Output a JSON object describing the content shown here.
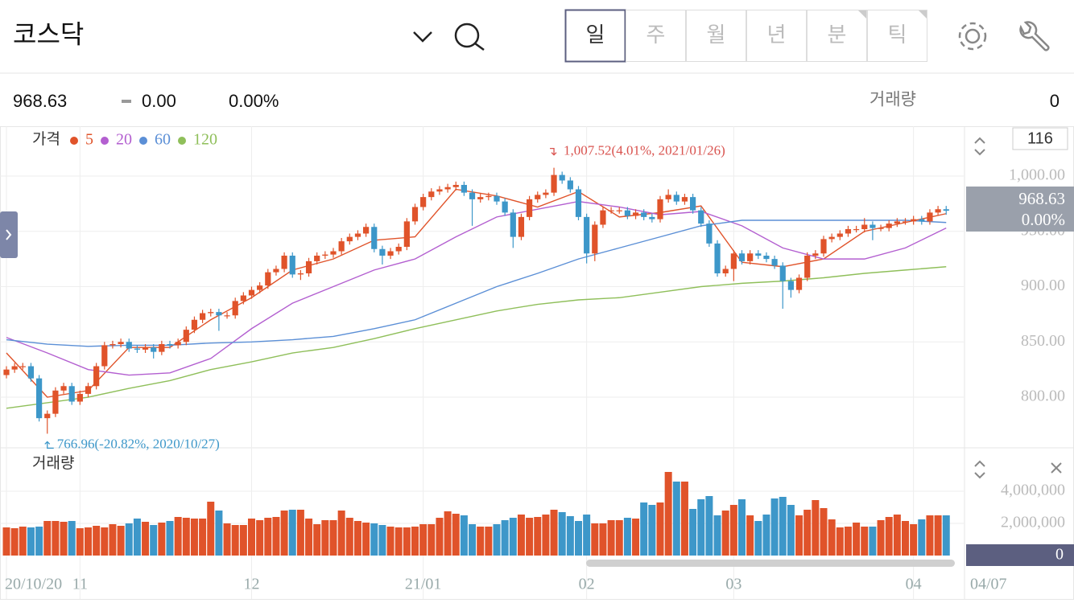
{
  "header": {
    "title": "코스닥",
    "tabs": [
      "일",
      "주",
      "월",
      "년",
      "분",
      "틱"
    ]
  },
  "quote": {
    "price": "968.63",
    "change": "0.00",
    "change_pct": "0.00%",
    "volume_label": "거래량",
    "volume": "0"
  },
  "chart_data": [
    {
      "type": "candlestick",
      "legend_title": "가격",
      "visible_count": 116,
      "up_color": "#e0532a",
      "down_color": "#3d97c9",
      "ylim": [
        754.2,
        1042.9
      ],
      "yticks": [
        {
          "value": 800,
          "label": "800.00"
        },
        {
          "value": 850,
          "label": "850.00"
        },
        {
          "value": 900,
          "label": "900.00"
        },
        {
          "value": 950,
          "label": "950.00"
        },
        {
          "value": 1000,
          "label": "1,000.00"
        }
      ],
      "grid": true,
      "annotations": [
        {
          "text": "1,007.52(4.01%, 2021/01/26)",
          "color": "#d9534f",
          "at": 67,
          "value": 1007.52
        },
        {
          "text": "766.96(-20.82%, 2020/10/27)",
          "color": "#3d97c9",
          "at": 5,
          "value": 766.96
        }
      ],
      "open": [
        820,
        825,
        828,
        828,
        817,
        781,
        785,
        806,
        810,
        796,
        803,
        810,
        828,
        847,
        848,
        850,
        844,
        843,
        845,
        841,
        848,
        847,
        850,
        861,
        870,
        876,
        877,
        874,
        874,
        887,
        892,
        897,
        901,
        913,
        916,
        928,
        911,
        912,
        923,
        928,
        929,
        932,
        941,
        945,
        948,
        954,
        934,
        928,
        932,
        936,
        959,
        972,
        981,
        986,
        988,
        990,
        992,
        985,
        979,
        981,
        982,
        977,
        967,
        945,
        963,
        979,
        983,
        985,
        1001,
        996,
        988,
        963,
        930,
        956,
        969,
        969,
        969,
        964,
        967,
        963,
        961,
        979,
        983,
        977,
        981,
        969,
        957,
        939,
        912,
        916,
        930,
        923,
        930,
        928,
        925,
        919,
        905,
        897,
        908,
        928,
        930,
        943,
        945,
        948,
        952,
        952,
        956,
        953,
        953,
        957,
        959,
        959,
        961,
        959,
        967,
        970
      ],
      "high": [
        828,
        831,
        831,
        831,
        820,
        788,
        809,
        813,
        813,
        806,
        813,
        831,
        850,
        851,
        853,
        853,
        847,
        848,
        848,
        851,
        851,
        853,
        864,
        873,
        879,
        880,
        880,
        877,
        890,
        895,
        900,
        904,
        916,
        919,
        931,
        931,
        915,
        926,
        931,
        932,
        935,
        944,
        948,
        951,
        957,
        957,
        937,
        935,
        939,
        962,
        975,
        984,
        989,
        991,
        993,
        995,
        995,
        988,
        984,
        985,
        985,
        980,
        970,
        966,
        982,
        986,
        988,
        1007.52,
        1004,
        999,
        991,
        966,
        959,
        972,
        972,
        972,
        972,
        970,
        970,
        966,
        982,
        988,
        986,
        984,
        984,
        972,
        960,
        942,
        919,
        933,
        933,
        933,
        933,
        931,
        928,
        922,
        908,
        911,
        931,
        933,
        946,
        948,
        951,
        955,
        955,
        962,
        959,
        956,
        960,
        962,
        962,
        964,
        964,
        970,
        973,
        973
      ],
      "low": [
        817,
        822,
        825,
        814,
        778,
        766.96,
        782,
        803,
        793,
        793,
        800,
        807,
        825,
        844,
        845,
        841,
        840,
        840,
        835,
        838,
        844,
        844,
        847,
        858,
        867,
        873,
        860,
        871,
        871,
        884,
        889,
        894,
        898,
        910,
        913,
        908,
        906,
        909,
        920,
        925,
        926,
        929,
        938,
        942,
        945,
        931,
        920,
        925,
        929,
        933,
        956,
        969,
        978,
        983,
        985,
        987,
        982,
        955,
        976,
        978,
        974,
        964,
        935,
        942,
        960,
        976,
        980,
        982,
        993,
        985,
        960,
        921,
        923,
        953,
        966,
        966,
        961,
        961,
        960,
        958,
        958,
        976,
        974,
        974,
        966,
        954,
        936,
        909,
        909,
        905,
        920,
        920,
        925,
        922,
        916,
        880,
        890,
        894,
        905,
        925,
        927,
        940,
        942,
        945,
        949,
        949,
        942,
        950,
        950,
        954,
        956,
        956,
        956,
        956,
        964,
        965
      ],
      "close": [
        825,
        828,
        828,
        817,
        781,
        785,
        806,
        810,
        796,
        803,
        810,
        828,
        847,
        848,
        850,
        844,
        843,
        845,
        841,
        848,
        847,
        850,
        861,
        870,
        876,
        877,
        874,
        874,
        887,
        892,
        897,
        901,
        913,
        916,
        928,
        911,
        912,
        923,
        928,
        929,
        932,
        941,
        945,
        948,
        954,
        934,
        928,
        932,
        936,
        959,
        972,
        981,
        986,
        988,
        990,
        992,
        985,
        979,
        981,
        982,
        977,
        967,
        945,
        963,
        979,
        983,
        985,
        1001,
        996,
        988,
        963,
        930,
        956,
        969,
        969,
        969,
        964,
        967,
        963,
        961,
        979,
        983,
        977,
        981,
        969,
        957,
        939,
        912,
        916,
        930,
        923,
        930,
        928,
        925,
        919,
        905,
        897,
        908,
        928,
        930,
        943,
        945,
        948,
        952,
        952,
        956,
        953,
        953,
        957,
        959,
        959,
        961,
        959,
        967,
        970,
        968.63
      ],
      "series": [
        {
          "name": "5",
          "color": "#e0532a",
          "x": [
            0,
            5,
            10,
            15,
            20,
            25,
            30,
            35,
            40,
            45,
            50,
            55,
            60,
            65,
            70,
            75,
            80,
            85,
            90,
            95,
            100,
            105,
            110,
            115
          ],
          "values": [
            840,
            800,
            806,
            845,
            845,
            870,
            890,
            915,
            925,
            942,
            945,
            988,
            982,
            972,
            986,
            963,
            967,
            973,
            922,
            918,
            925,
            950,
            958,
            966
          ]
        },
        {
          "name": "20",
          "color": "#b35fd0",
          "x": [
            0,
            5,
            10,
            15,
            20,
            25,
            30,
            35,
            40,
            45,
            50,
            55,
            60,
            65,
            70,
            75,
            80,
            85,
            90,
            95,
            100,
            105,
            110,
            115
          ],
          "values": [
            854,
            840,
            825,
            820,
            822,
            835,
            862,
            885,
            900,
            915,
            925,
            945,
            963,
            970,
            977,
            972,
            965,
            968,
            955,
            935,
            925,
            925,
            935,
            953
          ]
        },
        {
          "name": "60",
          "color": "#5b8fd6",
          "x": [
            0,
            5,
            10,
            15,
            20,
            25,
            30,
            35,
            40,
            45,
            50,
            55,
            60,
            65,
            70,
            75,
            80,
            85,
            90,
            95,
            100,
            105,
            110,
            115
          ],
          "values": [
            852,
            848,
            846,
            847,
            847,
            849,
            850,
            852,
            855,
            862,
            870,
            885,
            900,
            912,
            925,
            935,
            945,
            955,
            960,
            960,
            960,
            960,
            960,
            958
          ]
        },
        {
          "name": "120",
          "color": "#8fbf5a",
          "x": [
            0,
            5,
            10,
            15,
            20,
            25,
            30,
            35,
            40,
            45,
            50,
            55,
            60,
            65,
            70,
            75,
            80,
            85,
            90,
            95,
            100,
            105,
            110,
            115
          ],
          "values": [
            790,
            795,
            800,
            808,
            815,
            825,
            832,
            840,
            845,
            853,
            862,
            870,
            878,
            884,
            888,
            890,
            895,
            900,
            903,
            905,
            908,
            912,
            915,
            918
          ]
        }
      ]
    },
    {
      "type": "bar",
      "title": "거래량",
      "ylim": [
        0,
        6550000
      ],
      "yticks": [
        {
          "value": 2000000,
          "label": "2,000,000"
        },
        {
          "value": 4000000,
          "label": "4,000,000"
        }
      ],
      "categories": [
        "20/10/20",
        null,
        null,
        null,
        null,
        null,
        null,
        null,
        null,
        "11",
        null,
        null,
        null,
        null,
        null,
        null,
        null,
        null,
        null,
        null,
        null,
        null,
        null,
        null,
        null,
        null,
        null,
        null,
        null,
        null,
        "12",
        null,
        null,
        null,
        null,
        null,
        null,
        null,
        null,
        null,
        null,
        null,
        null,
        null,
        null,
        null,
        null,
        null,
        null,
        null,
        null,
        "21/01",
        null,
        null,
        null,
        null,
        null,
        null,
        null,
        null,
        null,
        null,
        null,
        null,
        null,
        null,
        null,
        null,
        null,
        null,
        null,
        "02",
        null,
        null,
        null,
        null,
        null,
        null,
        null,
        null,
        null,
        null,
        null,
        null,
        null,
        null,
        null,
        null,
        null,
        "03",
        null,
        null,
        null,
        null,
        null,
        null,
        null,
        null,
        null,
        null,
        null,
        null,
        null,
        null,
        null,
        null,
        null,
        null,
        null,
        null,
        null,
        "04",
        null,
        null,
        null,
        null
      ],
      "last_date": "04/07",
      "values": [
        1750000,
        1700000,
        1800000,
        1750000,
        1800000,
        2150000,
        2150000,
        2100000,
        2150000,
        1700000,
        1750000,
        1850000,
        1750000,
        1950000,
        1850000,
        2000000,
        2300000,
        2100000,
        1900000,
        2050000,
        2150000,
        2400000,
        2350000,
        2300000,
        2300000,
        3350000,
        2800000,
        2000000,
        1900000,
        1900000,
        2300000,
        2200000,
        2350000,
        2400000,
        2800000,
        2850000,
        2850000,
        2300000,
        1950000,
        2200000,
        2200000,
        2800000,
        2350000,
        2150000,
        2050000,
        2000000,
        1900000,
        1800000,
        1750000,
        1750000,
        1800000,
        1950000,
        1950000,
        2350000,
        2750000,
        2600000,
        2500000,
        1950000,
        1800000,
        1800000,
        1950000,
        2200000,
        2350000,
        2550000,
        2350000,
        2400000,
        2550000,
        2850000,
        2700000,
        2450000,
        2150000,
        2550000,
        2000000,
        2000000,
        2200000,
        2200000,
        2350000,
        2300000,
        3300000,
        3150000,
        3300000,
        5200000,
        4600000,
        4600000,
        2900000,
        3500000,
        3700000,
        2500000,
        2800000,
        3150000,
        3500000,
        2500000,
        2150000,
        2550000,
        3550000,
        3650000,
        3150000,
        2500000,
        2850000,
        3450000,
        2950000,
        2250000,
        1750000,
        1800000,
        2050000,
        1800000,
        1800000,
        2200000,
        2400000,
        2550000,
        2150000,
        1950000,
        2250000,
        2500000,
        2500000,
        2500000
      ]
    }
  ]
}
